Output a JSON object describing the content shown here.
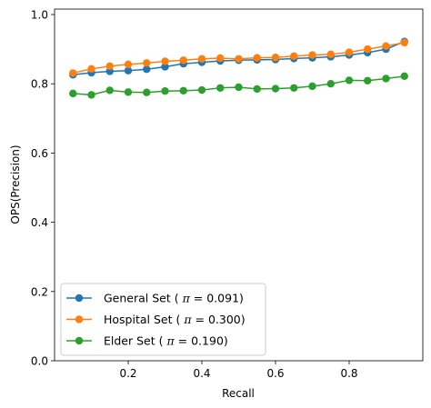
{
  "chart_data": {
    "type": "line",
    "xlabel": "Recall",
    "ylabel": "OPS(Precision)",
    "xlim": [
      0.0,
      1.0
    ],
    "ylim": [
      0.0,
      1.0
    ],
    "x_ticks": [
      0.2,
      0.4,
      0.6,
      0.8
    ],
    "x_tick_labels": [
      "0.2",
      "0.4",
      "0.6",
      "0.8"
    ],
    "y_ticks": [
      0.0,
      0.2,
      0.4,
      0.6,
      0.8,
      1.0
    ],
    "y_tick_labels": [
      "0.0",
      "0.2",
      "0.4",
      "0.6",
      "0.8",
      "1.0"
    ],
    "grid": false,
    "legend_position": "lower-left",
    "x": [
      0.05,
      0.1,
      0.15,
      0.2,
      0.25,
      0.3,
      0.35,
      0.4,
      0.45,
      0.5,
      0.55,
      0.6,
      0.65,
      0.7,
      0.75,
      0.8,
      0.85,
      0.9,
      0.95
    ],
    "series": [
      {
        "name": "General Set ( π = 0.091)",
        "legend_prefix": "General Set ( ",
        "legend_pi": "π",
        "legend_suffix": " = 0.091)",
        "color": "#1f77b4",
        "values": [
          0.826,
          0.832,
          0.836,
          0.838,
          0.842,
          0.849,
          0.858,
          0.862,
          0.866,
          0.868,
          0.869,
          0.87,
          0.873,
          0.875,
          0.878,
          0.883,
          0.89,
          0.9,
          0.922
        ]
      },
      {
        "name": "Hospital Set ( π = 0.300)",
        "legend_prefix": "Hospital Set ( ",
        "legend_pi": "π",
        "legend_suffix": " = 0.300)",
        "color": "#ff7f0e",
        "values": [
          0.831,
          0.843,
          0.851,
          0.856,
          0.86,
          0.865,
          0.868,
          0.872,
          0.874,
          0.872,
          0.875,
          0.876,
          0.88,
          0.883,
          0.885,
          0.891,
          0.9,
          0.909,
          0.919
        ]
      },
      {
        "name": "Elder Set ( π = 0.190)",
        "legend_prefix": "Elder Set ( ",
        "legend_pi": "π",
        "legend_suffix": " = 0.190)",
        "color": "#2ca02c",
        "values": [
          0.772,
          0.768,
          0.781,
          0.776,
          0.775,
          0.779,
          0.78,
          0.782,
          0.788,
          0.79,
          0.785,
          0.786,
          0.788,
          0.793,
          0.8,
          0.81,
          0.809,
          0.815,
          0.822
        ]
      }
    ]
  }
}
